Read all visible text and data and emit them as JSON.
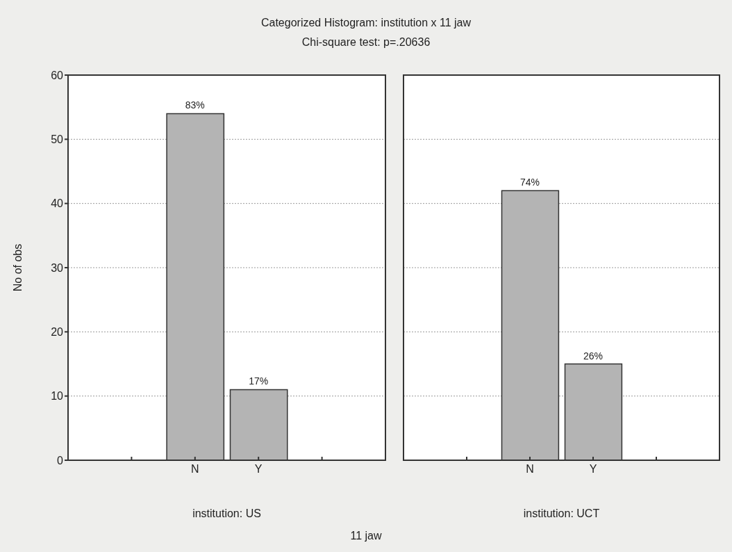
{
  "chart_data": [
    {
      "type": "bar",
      "title": "Categorized Histogram: institution x 11 jaw",
      "subtitle": "Chi-square test: p=.20636",
      "xlabel": "institution: US",
      "ylabel": "No of obs",
      "annotations": [
        "11 jaw",
        {
          "text": "83%",
          "x": "N",
          "y": 54
        },
        {
          "text": "17%",
          "x": "Y",
          "y": 11
        }
      ],
      "categories": [
        null,
        "N",
        "Y",
        null
      ],
      "values": [
        null,
        54,
        11,
        null
      ],
      "color": "#b4b4b4",
      "ylim": [
        0,
        60
      ],
      "yticks": [
        0,
        10,
        20,
        30,
        40,
        50,
        60
      ],
      "grid": "y"
    },
    {
      "type": "bar",
      "xlabel": "institution: UCT",
      "annotations": [
        {
          "text": "74%",
          "x": "N",
          "y": 42
        },
        {
          "text": "26%",
          "x": "Y",
          "y": 15
        }
      ],
      "categories": [
        null,
        "N",
        "Y",
        null
      ],
      "values": [
        null,
        42,
        15,
        null
      ],
      "color": "#b4b4b4",
      "ylim": [
        0,
        60
      ],
      "yticks": [
        0,
        10,
        20,
        30,
        40,
        50,
        60
      ],
      "grid": "y",
      "tick_labels": "x"
    }
  ]
}
